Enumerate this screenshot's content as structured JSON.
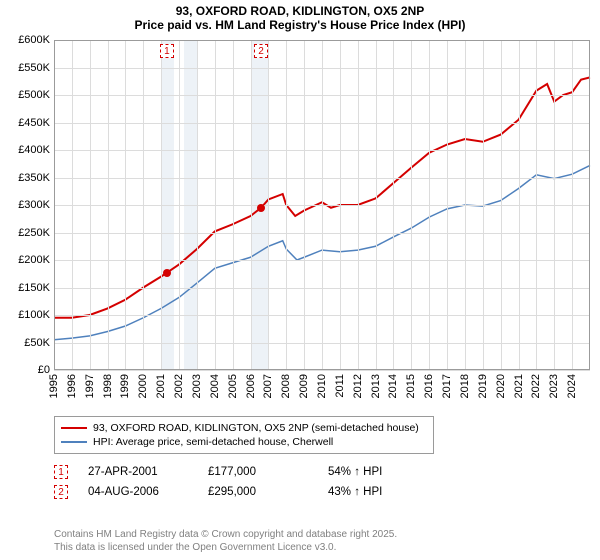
{
  "title_line1": "93, OXFORD ROAD, KIDLINGTON, OX5 2NP",
  "title_line2": "Price paid vs. HM Land Registry's House Price Index (HPI)",
  "chart": {
    "type": "line",
    "background_color": "#ffffff",
    "grid_color": "#dcdcdc",
    "axis_color": "#9b9b9b",
    "band_color": "#e6edf4",
    "x": {
      "min": 1995,
      "max": 2025,
      "ticks": [
        1995,
        1996,
        1997,
        1998,
        1999,
        2000,
        2001,
        2002,
        2003,
        2004,
        2005,
        2006,
        2007,
        2008,
        2009,
        2010,
        2011,
        2012,
        2013,
        2014,
        2015,
        2016,
        2017,
        2018,
        2019,
        2020,
        2021,
        2022,
        2023,
        2024
      ],
      "label_fontsize": 11,
      "label_rotation": -90
    },
    "y": {
      "min": 0,
      "max": 600000,
      "ticks": [
        0,
        50000,
        100000,
        150000,
        200000,
        250000,
        300000,
        350000,
        400000,
        450000,
        500000,
        550000,
        600000
      ],
      "tick_format": "£K",
      "label_fontsize": 11
    },
    "bands": [
      {
        "from": 2001.0,
        "to": 2001.7
      },
      {
        "from": 2002.3,
        "to": 2003.0
      },
      {
        "from": 2006.1,
        "to": 2007.0
      }
    ],
    "series": [
      {
        "name": "93, OXFORD ROAD, KIDLINGTON, OX5 2NP (semi-detached house)",
        "color": "#d40000",
        "line_width": 2,
        "points": [
          [
            1995,
            95000
          ],
          [
            1996,
            95000
          ],
          [
            1997,
            100000
          ],
          [
            1998,
            112000
          ],
          [
            1999,
            128000
          ],
          [
            2000,
            150000
          ],
          [
            2001,
            170000
          ],
          [
            2001.32,
            177000
          ],
          [
            2002,
            192000
          ],
          [
            2003,
            220000
          ],
          [
            2004,
            252000
          ],
          [
            2005,
            265000
          ],
          [
            2006,
            280000
          ],
          [
            2006.59,
            295000
          ],
          [
            2007,
            310000
          ],
          [
            2007.8,
            320000
          ],
          [
            2008,
            300000
          ],
          [
            2008.5,
            280000
          ],
          [
            2009,
            290000
          ],
          [
            2010,
            305000
          ],
          [
            2010.5,
            295000
          ],
          [
            2011,
            300000
          ],
          [
            2012,
            300000
          ],
          [
            2013,
            312000
          ],
          [
            2014,
            340000
          ],
          [
            2015,
            368000
          ],
          [
            2016,
            395000
          ],
          [
            2017,
            410000
          ],
          [
            2018,
            420000
          ],
          [
            2019,
            415000
          ],
          [
            2020,
            428000
          ],
          [
            2021,
            455000
          ],
          [
            2022,
            508000
          ],
          [
            2022.6,
            520000
          ],
          [
            2023,
            488000
          ],
          [
            2023.5,
            500000
          ],
          [
            2024,
            505000
          ],
          [
            2024.5,
            528000
          ],
          [
            2025,
            532000
          ]
        ]
      },
      {
        "name": "HPI: Average price, semi-detached house, Cherwell",
        "color": "#4f81bd",
        "line_width": 1.5,
        "points": [
          [
            1995,
            55000
          ],
          [
            1996,
            58000
          ],
          [
            1997,
            62000
          ],
          [
            1998,
            70000
          ],
          [
            1999,
            80000
          ],
          [
            2000,
            95000
          ],
          [
            2001,
            112000
          ],
          [
            2002,
            132000
          ],
          [
            2003,
            158000
          ],
          [
            2004,
            185000
          ],
          [
            2005,
            195000
          ],
          [
            2006,
            205000
          ],
          [
            2007,
            225000
          ],
          [
            2007.8,
            235000
          ],
          [
            2008,
            220000
          ],
          [
            2008.6,
            200000
          ],
          [
            2009,
            205000
          ],
          [
            2010,
            218000
          ],
          [
            2011,
            215000
          ],
          [
            2012,
            218000
          ],
          [
            2013,
            225000
          ],
          [
            2014,
            242000
          ],
          [
            2015,
            258000
          ],
          [
            2016,
            278000
          ],
          [
            2017,
            293000
          ],
          [
            2018,
            300000
          ],
          [
            2019,
            298000
          ],
          [
            2020,
            308000
          ],
          [
            2021,
            330000
          ],
          [
            2022,
            355000
          ],
          [
            2023,
            348000
          ],
          [
            2024,
            356000
          ],
          [
            2025,
            372000
          ]
        ]
      }
    ],
    "sale_markers": [
      {
        "n": 1,
        "x": 2001.32,
        "y": 177000,
        "color": "#d40000",
        "box_y_top": true
      },
      {
        "n": 2,
        "x": 2006.59,
        "y": 295000,
        "color": "#d40000",
        "box_y_top": true
      }
    ]
  },
  "legend": {
    "rows": [
      {
        "color": "#d40000",
        "label": "93, OXFORD ROAD, KIDLINGTON, OX5 2NP (semi-detached house)"
      },
      {
        "color": "#4f81bd",
        "label": "HPI: Average price, semi-detached house, Cherwell"
      }
    ]
  },
  "sales_table": [
    {
      "n": 1,
      "color": "#d40000",
      "date": "27-APR-2001",
      "price": "£177,000",
      "delta": "54% ↑ HPI"
    },
    {
      "n": 2,
      "color": "#d40000",
      "date": "04-AUG-2006",
      "price": "£295,000",
      "delta": "43% ↑ HPI"
    }
  ],
  "attribution": {
    "line1": "Contains HM Land Registry data © Crown copyright and database right 2025.",
    "line2": "This data is licensed under the Open Government Licence v3.0."
  }
}
